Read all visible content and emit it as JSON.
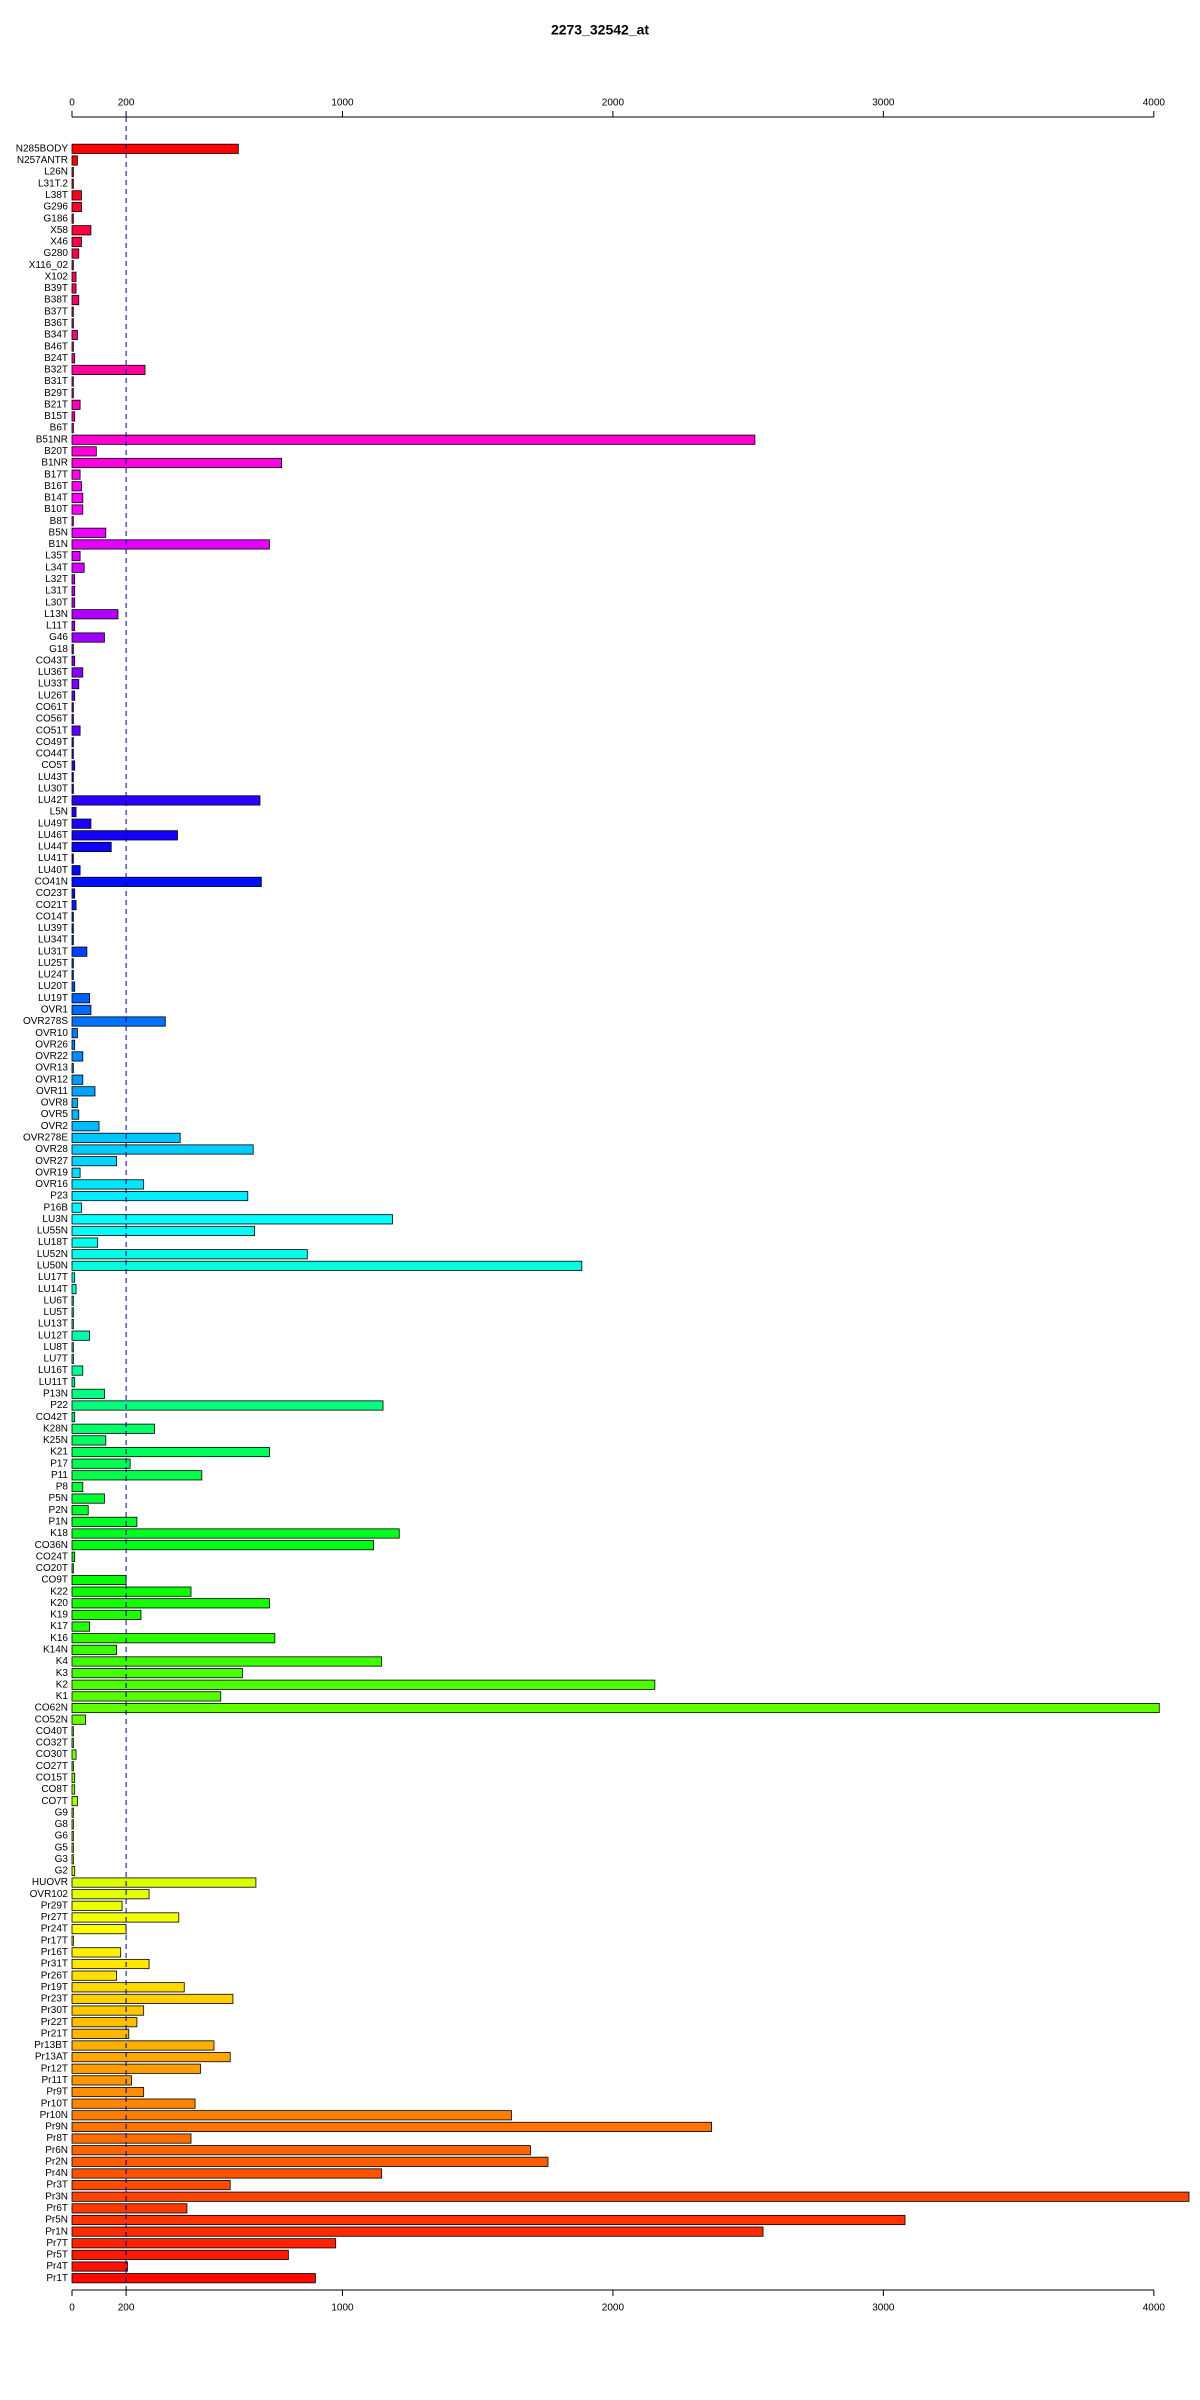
{
  "chart_data": {
    "type": "barh",
    "title": "2273_32542_at",
    "categories": [
      "N285BODY",
      "N257ANTR",
      "L26N",
      "L31T.2",
      "L38T",
      "G296",
      "G186",
      "X58",
      "X46",
      "G280",
      "X116_02",
      "X102",
      "B39T",
      "B38T",
      "B37T",
      "B36T",
      "B34T",
      "B46T",
      "B24T",
      "B32T",
      "B31T",
      "B29T",
      "B21T",
      "B15T",
      "B6T",
      "B51NR",
      "B20T",
      "B1NR",
      "B17T",
      "B16T",
      "B14T",
      "B10T",
      "B8T",
      "B5N",
      "B1N",
      "L35T",
      "L34T",
      "L32T",
      "L31T",
      "L30T",
      "L13N",
      "L11T",
      "G46",
      "G18",
      "CO43T",
      "LU36T",
      "LU33T",
      "LU26T",
      "CO61T",
      "CO56T",
      "CO51T",
      "CO49T",
      "CO44T",
      "CO5T",
      "LU43T",
      "LU30T",
      "LU42T",
      "L5N",
      "LU49T",
      "LU46T",
      "LU44T",
      "LU41T",
      "LU40T",
      "CO41N",
      "CO23T",
      "CO21T",
      "CO14T",
      "LU39T",
      "LU34T",
      "LU31T",
      "LU25T",
      "LU24T",
      "LU20T",
      "LU19T",
      "OVR1",
      "OVR278S",
      "OVR10",
      "OVR26",
      "OVR22",
      "OVR13",
      "OVR12",
      "OVR11",
      "OVR8",
      "OVR5",
      "OVR2",
      "OVR278E",
      "OVR28",
      "OVR27",
      "OVR19",
      "OVR16",
      "P23",
      "P16B",
      "LU3N",
      "LU55N",
      "LU18T",
      "LU52N",
      "LU50N",
      "LU17T",
      "LU14T",
      "LU6T",
      "LU5T",
      "LU13T",
      "LU12T",
      "LU8T",
      "LU7T",
      "LU16T",
      "LU11T",
      "P13N",
      "P22",
      "CO42T",
      "K28N",
      "K25N",
      "K21",
      "P17",
      "P11",
      "P8",
      "P5N",
      "P2N",
      "P1N",
      "K18",
      "CO36N",
      "CO24T",
      "CO20T",
      "CO9T",
      "K22",
      "K20",
      "K19",
      "K17",
      "K16",
      "K14N",
      "K4",
      "K3",
      "K2",
      "K1",
      "CO62N",
      "CO52N",
      "CO40T",
      "CO32T",
      "CO30T",
      "CO27T",
      "CO15T",
      "CO8T",
      "CO7T",
      "G9",
      "G8",
      "G6",
      "G5",
      "G3",
      "G2",
      "HUOVR",
      "OVR102",
      "Pr29T",
      "Pr27T",
      "Pr24T",
      "Pr17T",
      "Pr16T",
      "Pr31T",
      "Pr26T",
      "Pr19T",
      "Pr23T",
      "Pr30T",
      "Pr22T",
      "Pr21T",
      "Pr13BT",
      "Pr13AT",
      "Pr12T",
      "Pr11T",
      "Pr9T",
      "Pr10T",
      "Pr10N",
      "Pr9N",
      "Pr8T",
      "Pr6N",
      "Pr2N",
      "Pr4N",
      "Pr3T",
      "Pr3N",
      "Pr6T",
      "Pr5N",
      "Pr1N",
      "Pr7T",
      "Pr5T",
      "Pr4T",
      "Pr1T"
    ],
    "values": [
      615,
      20,
      5,
      5,
      35,
      35,
      5,
      70,
      35,
      25,
      5,
      15,
      15,
      25,
      5,
      5,
      20,
      5,
      10,
      270,
      5,
      5,
      30,
      10,
      5,
      2525,
      90,
      775,
      30,
      35,
      40,
      40,
      5,
      125,
      730,
      30,
      45,
      10,
      10,
      10,
      170,
      10,
      120,
      5,
      10,
      40,
      25,
      10,
      5,
      5,
      30,
      5,
      5,
      10,
      5,
      5,
      695,
      15,
      70,
      390,
      145,
      5,
      30,
      700,
      10,
      15,
      5,
      5,
      5,
      55,
      5,
      5,
      10,
      65,
      70,
      345,
      20,
      10,
      40,
      5,
      40,
      85,
      20,
      25,
      100,
      400,
      670,
      165,
      30,
      265,
      650,
      35,
      1185,
      675,
      95,
      870,
      1885,
      10,
      15,
      5,
      5,
      5,
      65,
      5,
      5,
      40,
      10,
      120,
      1150,
      10,
      305,
      125,
      730,
      215,
      480,
      40,
      120,
      60,
      240,
      1210,
      1115,
      10,
      5,
      200,
      440,
      730,
      255,
      65,
      750,
      165,
      1145,
      630,
      2155,
      550,
      4020,
      50,
      5,
      5,
      15,
      5,
      10,
      10,
      20,
      5,
      5,
      5,
      5,
      5,
      10,
      680,
      285,
      185,
      395,
      200,
      5,
      180,
      285,
      165,
      415,
      595,
      265,
      240,
      210,
      525,
      585,
      475,
      220,
      265,
      455,
      1625,
      2365,
      440,
      1695,
      1760,
      1145,
      585,
      4130,
      425,
      3080,
      2555,
      975,
      800,
      205,
      900
    ],
    "xlim": [
      0,
      4130
    ],
    "xticks": [
      0,
      200,
      1000,
      2000,
      3000,
      4000
    ],
    "reference_line": 200,
    "reference_line_color": "#00008b",
    "rainbow_hues": [
      360,
      0
    ],
    "bar_border_color": "#000000"
  }
}
